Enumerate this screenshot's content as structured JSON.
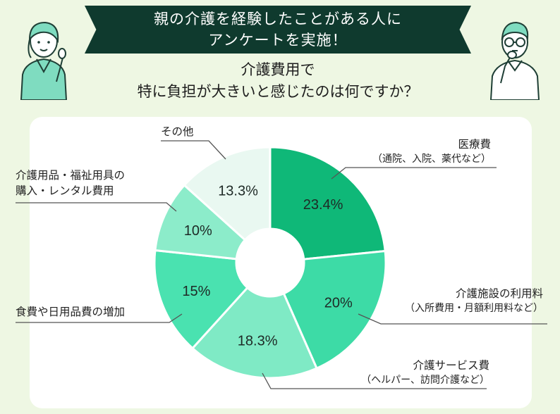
{
  "header": {
    "banner_line1": "親の介護を経験したことがある人に",
    "banner_line2": "アンケートを実施！",
    "question_line1": "介護費用で",
    "question_line2": "特に負担が大きいと感じたのは何ですか？"
  },
  "colors": {
    "background": "#eef7e3",
    "banner": "#0f3a2e",
    "slice_medical": "#0fb878",
    "slice_facility": "#3ddba6",
    "slice_service": "#7feac5",
    "slice_food": "#4ae2b0",
    "slice_goods": "#8cecca",
    "slice_other": "#e9f8f1"
  },
  "chart_data": {
    "type": "pie",
    "donut": true,
    "slices": [
      {
        "label": "医療費",
        "sublabel": "（通院、入院、薬代など）",
        "value": 23.4,
        "display": "23.4%"
      },
      {
        "label": "介護施設の利用料",
        "sublabel": "（入所費用・月額利用料など）",
        "value": 20,
        "display": "20%"
      },
      {
        "label": "介護サービス費",
        "sublabel": "（ヘルパー、訪問介護など）",
        "value": 18.3,
        "display": "18.3%"
      },
      {
        "label": "食費や日用品費の増加",
        "sublabel": "",
        "value": 15,
        "display": "15%"
      },
      {
        "label": "介護用品・福祉用具の",
        "label2": "購入・レンタル費用",
        "sublabel": "",
        "value": 10,
        "display": "10%"
      },
      {
        "label": "その他",
        "sublabel": "",
        "value": 13.3,
        "display": "13.3%"
      }
    ]
  }
}
